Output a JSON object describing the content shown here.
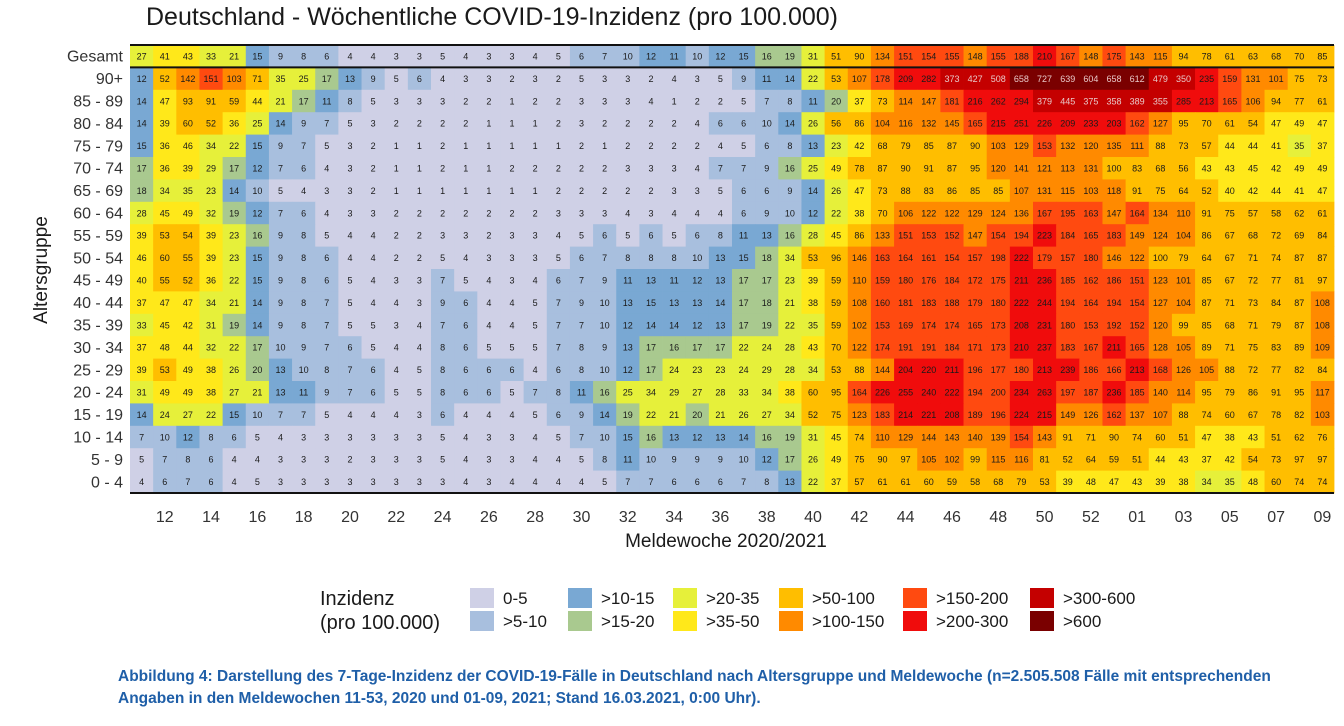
{
  "colors": {
    "bins": [
      "#cfd0e6",
      "#a8bfde",
      "#79a8d3",
      "#a9c98f",
      "#e6f03a",
      "#ffe81a",
      "#ffbe00",
      "#ff8a00",
      "#ff4a10",
      "#f00c0c",
      "#c40000",
      "#7a0000"
    ]
  },
  "chart_data": {
    "type": "heatmap",
    "title": "Deutschland - Wöchentliche COVID-19-Inzidenz (pro 100.000)",
    "xlabel": "Meldewoche 2020/2021",
    "ylabel": "Altersgruppe",
    "x_ticks": [
      "12",
      "14",
      "16",
      "18",
      "20",
      "22",
      "24",
      "26",
      "28",
      "30",
      "32",
      "34",
      "36",
      "38",
      "40",
      "42",
      "44",
      "46",
      "48",
      "50",
      "52",
      "01",
      "03",
      "05",
      "07",
      "09"
    ],
    "rows": [
      "Gesamt",
      "90+",
      "85 - 89",
      "80 - 84",
      "75 - 79",
      "70 - 74",
      "65 - 69",
      "60 - 64",
      "55 - 59",
      "50 - 54",
      "45 - 49",
      "40 - 44",
      "35 - 39",
      "30 - 34",
      "25 - 29",
      "20 - 24",
      "15 - 19",
      "10 - 14",
      "5 - 9",
      "0 - 4"
    ],
    "values": [
      [
        27,
        41,
        43,
        33,
        21,
        15,
        9,
        8,
        6,
        4,
        4,
        3,
        3,
        5,
        4,
        3,
        3,
        4,
        5,
        6,
        7,
        10,
        12,
        11,
        10,
        12,
        15,
        16,
        19,
        31,
        51,
        90,
        134,
        151,
        154,
        155,
        148,
        155,
        188,
        210,
        167,
        148,
        175,
        143,
        115,
        94,
        78,
        61,
        63,
        68,
        70,
        85
      ],
      [
        12,
        52,
        142,
        151,
        103,
        71,
        35,
        25,
        17,
        13,
        9,
        5,
        6,
        4,
        3,
        3,
        2,
        3,
        2,
        5,
        3,
        3,
        2,
        4,
        3,
        5,
        9,
        11,
        14,
        22,
        53,
        107,
        178,
        209,
        282,
        373,
        427,
        508,
        658,
        727,
        639,
        604,
        658,
        612,
        479,
        350,
        235,
        159,
        131,
        101,
        75,
        73
      ],
      [
        14,
        47,
        93,
        91,
        59,
        44,
        21,
        17,
        11,
        8,
        5,
        3,
        3,
        3,
        2,
        2,
        1,
        2,
        2,
        3,
        3,
        3,
        4,
        1,
        2,
        2,
        5,
        7,
        8,
        11,
        20,
        37,
        73,
        114,
        147,
        181,
        216,
        262,
        294,
        379,
        445,
        375,
        358,
        389,
        355,
        285,
        213,
        165,
        106,
        94,
        77,
        61
      ],
      [
        14,
        39,
        60,
        52,
        36,
        25,
        14,
        9,
        7,
        5,
        3,
        2,
        2,
        2,
        2,
        1,
        1,
        1,
        2,
        3,
        2,
        2,
        2,
        2,
        4,
        6,
        6,
        10,
        14,
        26,
        56,
        86,
        104,
        116,
        132,
        145,
        165,
        215,
        251,
        226,
        209,
        233,
        203,
        162,
        127,
        95,
        70,
        61,
        54,
        47,
        49,
        47
      ],
      [
        15,
        36,
        46,
        34,
        22,
        15,
        9,
        7,
        5,
        3,
        2,
        1,
        1,
        2,
        1,
        1,
        1,
        1,
        1,
        2,
        1,
        2,
        2,
        2,
        2,
        4,
        5,
        6,
        8,
        13,
        23,
        42,
        68,
        79,
        85,
        87,
        90,
        103,
        129,
        153,
        132,
        120,
        135,
        111,
        88,
        73,
        57,
        44,
        44,
        41,
        35,
        37
      ],
      [
        17,
        36,
        39,
        29,
        17,
        12,
        7,
        6,
        4,
        3,
        2,
        1,
        1,
        2,
        1,
        1,
        2,
        2,
        2,
        2,
        2,
        3,
        3,
        3,
        4,
        7,
        7,
        9,
        16,
        25,
        49,
        78,
        87,
        90,
        91,
        87,
        95,
        120,
        141,
        121,
        113,
        131,
        100,
        83,
        68,
        56,
        43,
        43,
        45,
        42,
        49,
        49
      ],
      [
        18,
        34,
        35,
        23,
        14,
        10,
        5,
        4,
        3,
        3,
        2,
        1,
        1,
        1,
        1,
        1,
        1,
        1,
        2,
        2,
        2,
        2,
        2,
        3,
        3,
        5,
        6,
        6,
        9,
        14,
        26,
        47,
        73,
        88,
        83,
        86,
        85,
        85,
        107,
        131,
        115,
        103,
        118,
        91,
        75,
        64,
        52,
        40,
        42,
        44,
        41,
        47
      ],
      [
        28,
        45,
        49,
        32,
        19,
        12,
        7,
        6,
        4,
        3,
        3,
        2,
        2,
        2,
        2,
        2,
        2,
        2,
        3,
        3,
        3,
        4,
        3,
        4,
        4,
        4,
        6,
        9,
        10,
        12,
        22,
        38,
        70,
        106,
        122,
        122,
        129,
        124,
        136,
        167,
        195,
        163,
        147,
        164,
        134,
        110,
        91,
        75,
        57,
        58,
        62,
        61
      ],
      [
        39,
        53,
        54,
        39,
        23,
        16,
        9,
        8,
        5,
        4,
        4,
        2,
        2,
        3,
        3,
        2,
        3,
        3,
        4,
        5,
        6,
        5,
        6,
        5,
        6,
        8,
        11,
        13,
        16,
        28,
        45,
        86,
        133,
        151,
        153,
        152,
        147,
        154,
        194,
        223,
        184,
        165,
        183,
        149,
        124,
        104,
        86,
        67,
        68,
        72,
        69,
        84
      ],
      [
        46,
        60,
        55,
        39,
        23,
        15,
        9,
        8,
        6,
        4,
        4,
        2,
        2,
        5,
        4,
        3,
        3,
        3,
        5,
        6,
        7,
        8,
        8,
        8,
        10,
        13,
        15,
        18,
        34,
        53,
        96,
        146,
        163,
        164,
        161,
        154,
        157,
        198,
        222,
        179,
        157,
        180,
        146,
        122,
        100,
        79,
        64,
        67,
        71,
        74,
        87,
        87
      ],
      [
        40,
        55,
        52,
        36,
        22,
        15,
        9,
        8,
        6,
        5,
        4,
        3,
        3,
        7,
        5,
        4,
        3,
        4,
        6,
        7,
        9,
        11,
        13,
        11,
        12,
        13,
        17,
        17,
        23,
        39,
        59,
        110,
        159,
        180,
        176,
        184,
        172,
        175,
        211,
        236,
        185,
        162,
        186,
        151,
        123,
        101,
        85,
        67,
        72,
        77,
        81,
        97
      ],
      [
        37,
        47,
        47,
        34,
        21,
        14,
        9,
        8,
        7,
        5,
        4,
        4,
        3,
        9,
        6,
        4,
        4,
        5,
        7,
        9,
        10,
        13,
        15,
        13,
        13,
        14,
        17,
        18,
        21,
        38,
        59,
        108,
        160,
        181,
        183,
        188,
        179,
        180,
        222,
        244,
        194,
        164,
        194,
        154,
        127,
        104,
        87,
        71,
        73,
        84,
        87,
        108
      ],
      [
        33,
        45,
        42,
        31,
        19,
        14,
        9,
        8,
        7,
        5,
        5,
        3,
        4,
        7,
        6,
        4,
        4,
        5,
        7,
        7,
        10,
        12,
        14,
        14,
        12,
        13,
        17,
        19,
        22,
        35,
        59,
        102,
        153,
        169,
        174,
        174,
        165,
        173,
        208,
        231,
        180,
        153,
        192,
        152,
        120,
        99,
        85,
        68,
        71,
        79,
        87,
        108
      ],
      [
        37,
        48,
        44,
        32,
        22,
        17,
        10,
        9,
        7,
        6,
        5,
        4,
        4,
        8,
        6,
        5,
        5,
        5,
        7,
        8,
        9,
        13,
        17,
        16,
        17,
        17,
        22,
        24,
        28,
        43,
        70,
        122,
        174,
        191,
        191,
        184,
        171,
        173,
        210,
        237,
        183,
        167,
        211,
        165,
        128,
        105,
        89,
        71,
        75,
        83,
        89,
        109
      ],
      [
        39,
        53,
        49,
        38,
        26,
        20,
        13,
        10,
        8,
        7,
        6,
        4,
        5,
        8,
        6,
        6,
        6,
        4,
        6,
        8,
        10,
        12,
        17,
        24,
        23,
        23,
        24,
        29,
        28,
        34,
        53,
        88,
        144,
        204,
        220,
        211,
        196,
        177,
        180,
        213,
        239,
        186,
        166,
        213,
        168,
        126,
        105,
        88,
        72,
        77,
        82,
        84
      ],
      [
        31,
        49,
        49,
        38,
        27,
        21,
        13,
        11,
        9,
        7,
        6,
        5,
        5,
        8,
        6,
        6,
        5,
        7,
        8,
        11,
        16,
        25,
        34,
        29,
        27,
        28,
        33,
        34,
        38,
        60,
        95,
        164,
        226,
        255,
        240,
        222,
        194,
        200,
        234,
        263,
        197,
        187,
        236,
        185,
        140,
        114,
        95,
        79,
        86,
        91,
        95,
        117
      ],
      [
        14,
        24,
        27,
        22,
        15,
        10,
        7,
        7,
        5,
        4,
        4,
        4,
        3,
        6,
        4,
        4,
        4,
        5,
        6,
        9,
        14,
        19,
        22,
        21,
        20,
        21,
        26,
        27,
        34,
        52,
        75,
        123,
        183,
        214,
        221,
        208,
        189,
        196,
        224,
        215,
        149,
        126,
        162,
        137,
        107,
        88,
        74,
        60,
        67,
        78,
        82,
        103
      ],
      [
        7,
        10,
        12,
        8,
        6,
        5,
        4,
        3,
        3,
        3,
        3,
        3,
        3,
        5,
        4,
        3,
        3,
        4,
        5,
        7,
        10,
        15,
        16,
        13,
        12,
        13,
        14,
        16,
        19,
        31,
        45,
        74,
        110,
        129,
        144,
        143,
        140,
        139,
        154,
        143,
        91,
        71,
        90,
        74,
        60,
        51,
        47,
        38,
        43,
        51,
        62,
        76
      ],
      [
        5,
        7,
        8,
        6,
        4,
        4,
        3,
        3,
        3,
        2,
        3,
        3,
        3,
        5,
        4,
        3,
        3,
        4,
        4,
        5,
        8,
        11,
        10,
        9,
        9,
        9,
        10,
        12,
        17,
        26,
        49,
        75,
        90,
        97,
        105,
        102,
        99,
        115,
        116,
        81,
        52,
        64,
        59,
        51,
        44,
        43,
        37,
        42,
        54,
        73,
        97,
        97
      ],
      [
        4,
        6,
        7,
        6,
        4,
        5,
        3,
        3,
        3,
        3,
        3,
        3,
        3,
        3,
        4,
        3,
        4,
        4,
        4,
        4,
        5,
        7,
        7,
        6,
        6,
        6,
        7,
        8,
        13,
        22,
        37,
        57,
        61,
        61,
        60,
        59,
        58,
        68,
        79,
        53,
        39,
        48,
        47,
        43,
        39,
        38,
        34,
        35,
        48,
        60,
        74,
        74
      ]
    ],
    "legend": {
      "title_line1": "Inzidenz",
      "title_line2": "(pro 100.000)",
      "bins": [
        "0-5",
        ">5-10",
        ">10-15",
        ">15-20",
        ">20-35",
        ">35-50",
        ">50-100",
        ">100-150",
        ">150-200",
        ">200-300",
        ">300-600",
        ">600"
      ],
      "thresholds": [
        5,
        10,
        15,
        20,
        35,
        50,
        100,
        150,
        200,
        300,
        600
      ]
    }
  },
  "caption": "Abbildung 4: Darstellung des 7-Tage-Inzidenz der COVID-19-Fälle in Deutschland nach Altersgruppe und Meldewoche (n=2.505.508 Fälle mit entsprechenden Angaben in den Meldewochen 11-53, 2020 und 01-09, 2021; Stand 16.03.2021, 0:00 Uhr)."
}
